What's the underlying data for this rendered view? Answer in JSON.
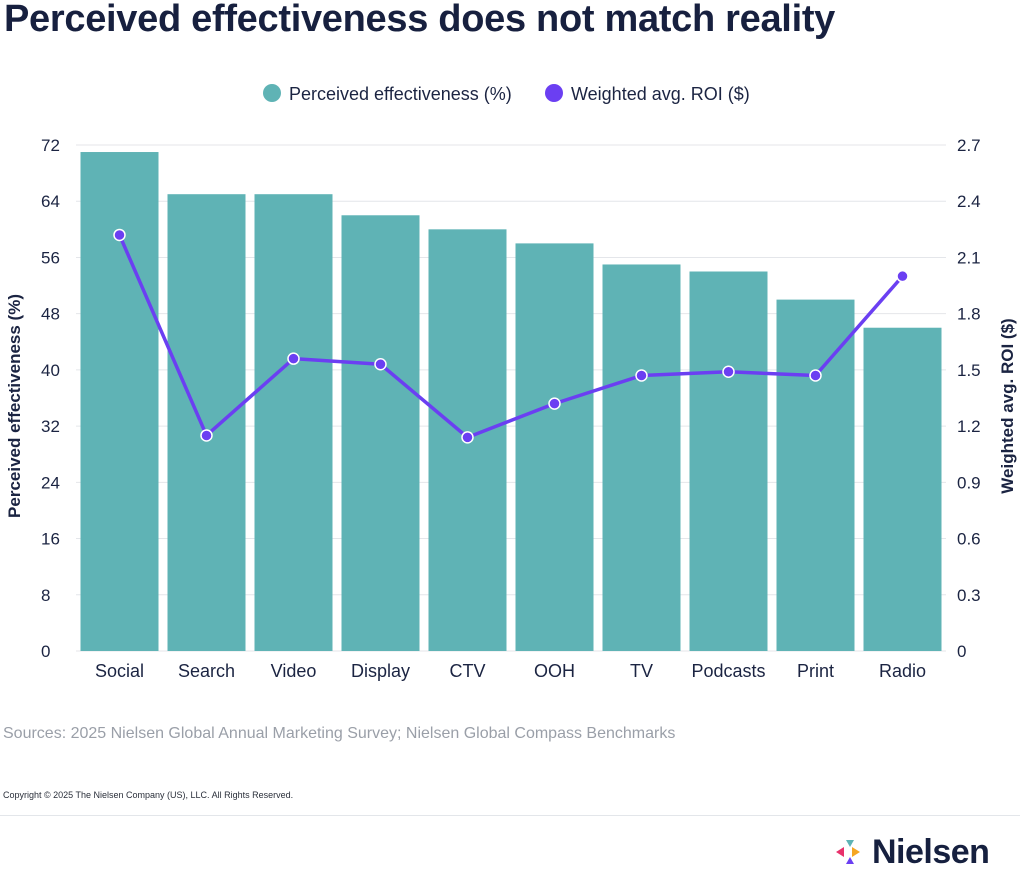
{
  "title": "Perceived effectiveness does not match reality",
  "chart_data": {
    "type": "bar",
    "categories": [
      "Social",
      "Search",
      "Video",
      "Display",
      "CTV",
      "OOH",
      "TV",
      "Podcasts",
      "Print",
      "Radio"
    ],
    "series": [
      {
        "name": "Perceived effectiveness (%)",
        "type": "bar",
        "axis": "left",
        "color": "#5fb3b5",
        "values": [
          71,
          65,
          65,
          62,
          60,
          58,
          55,
          54,
          50,
          46
        ]
      },
      {
        "name": "Weighted avg. ROI ($)",
        "type": "line",
        "axis": "right",
        "color": "#6b3ff2",
        "values": [
          2.22,
          1.15,
          1.56,
          1.53,
          1.14,
          1.32,
          1.47,
          1.49,
          1.47,
          2.0
        ]
      }
    ],
    "ylabel_left": "Perceived effectiveness (%)",
    "ylabel_right": "Weighted avg. ROI ($)",
    "ylim_left": [
      0,
      72
    ],
    "ylim_right": [
      0,
      2.7
    ],
    "yticks_left": [
      "0",
      "8",
      "16",
      "24",
      "32",
      "40",
      "48",
      "56",
      "64",
      "72"
    ],
    "yticks_right": [
      "0",
      "0.3",
      "0.6",
      "0.9",
      "1.2",
      "1.5",
      "1.8",
      "2.1",
      "2.4",
      "2.7"
    ],
    "legend_position": "top-center",
    "grid": true
  },
  "source": "Sources: 2025 Nielsen Global Annual Marketing Survey; Nielsen Global Compass Benchmarks",
  "copyright": "Copyright © 2025 The Nielsen Company (US), LLC. All Rights Reserved.",
  "brand": {
    "name": "Nielsen",
    "logo_icon": "nielsen-logo-icon"
  }
}
